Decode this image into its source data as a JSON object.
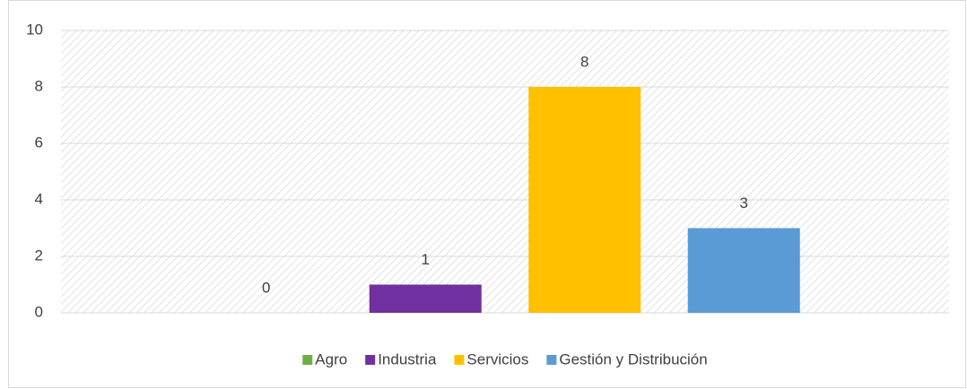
{
  "chart_data": {
    "type": "bar",
    "categories": [
      null
    ],
    "series": [
      {
        "name": "Agro",
        "color": "#70ad47",
        "values": [
          0
        ]
      },
      {
        "name": "Industria",
        "color": "#7030a0",
        "values": [
          1
        ]
      },
      {
        "name": "Servicios",
        "color": "#ffc000",
        "values": [
          8
        ]
      },
      {
        "name": "Gestión y Distribución",
        "color": "#5b9bd5",
        "values": [
          3
        ]
      }
    ],
    "ylim": [
      0,
      10
    ],
    "yticks": [
      0,
      2,
      4,
      6,
      8,
      10
    ],
    "grid": true,
    "legend": "bottom",
    "data_labels": true
  }
}
